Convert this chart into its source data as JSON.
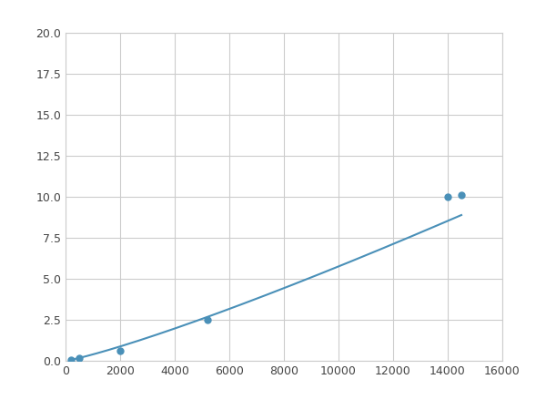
{
  "x": [
    200,
    500,
    2000,
    5200,
    14000,
    14500
  ],
  "y": [
    0.08,
    0.15,
    0.6,
    2.5,
    10.0,
    10.1
  ],
  "line_color": "#4a90b8",
  "marker_color": "#4a90b8",
  "marker_size": 5,
  "xlim": [
    0,
    16000
  ],
  "ylim": [
    0,
    20
  ],
  "xticks": [
    0,
    2000,
    4000,
    6000,
    8000,
    10000,
    12000,
    14000,
    16000
  ],
  "yticks": [
    0.0,
    2.5,
    5.0,
    7.5,
    10.0,
    12.5,
    15.0,
    17.5,
    20.0
  ],
  "grid_color": "#cccccc",
  "background_color": "#ffffff",
  "figsize": [
    6.0,
    4.5
  ],
  "dpi": 100
}
